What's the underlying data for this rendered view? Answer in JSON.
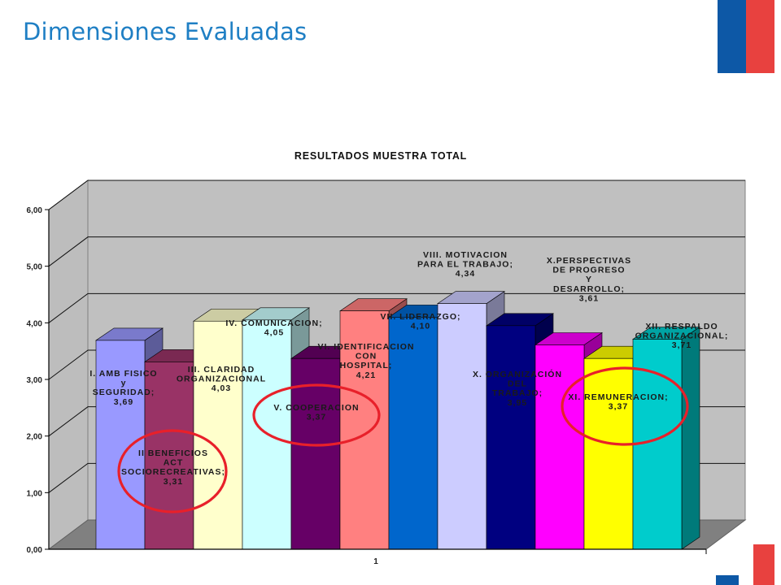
{
  "slide": {
    "title": "Dimensiones Evaluadas"
  },
  "brand_colors": {
    "blue": "#0d58a6",
    "red": "#e8413f",
    "title": "#1f7fc4"
  },
  "chart_data": {
    "type": "bar",
    "style": "3d-columns",
    "title": "RESULTADOS MUESTRA TOTAL",
    "xlabel": "",
    "ylabel": "",
    "x_tick": "1",
    "ylim": [
      0,
      6
    ],
    "yticks": [
      "0,00",
      "1,00",
      "2,00",
      "3,00",
      "4,00",
      "5,00",
      "6,00"
    ],
    "grid": true,
    "series": [
      {
        "name": "I. AMB FISICO y SEGURIDAD",
        "value": 3.69,
        "color": "#9999ff",
        "label_lines": [
          "I. AMB FISICO",
          "y",
          "SEGURIDAD;",
          "3,69"
        ]
      },
      {
        "name": "II BENEFICIOS ACT SOCIORECREATIVAS",
        "value": 3.31,
        "color": "#993366",
        "label_lines": [
          "II BENEFICIOS",
          "ACT",
          "SOCIORECREATIVAS;",
          "3,31"
        ]
      },
      {
        "name": "III. CLARIDAD ORGANIZACIONAL",
        "value": 4.03,
        "color": "#ffffcc",
        "label_lines": [
          "III. CLARIDAD",
          "ORGANIZACIONAL",
          "4,03"
        ]
      },
      {
        "name": "IV. COMUNICACION",
        "value": 4.05,
        "color": "#ccffff",
        "label_lines": [
          "IV. COMUNICACION;",
          "4,05"
        ]
      },
      {
        "name": "V. COOPERACION",
        "value": 3.37,
        "color": "#660066",
        "label_lines": [
          "V. COOPERACION",
          "3,37"
        ]
      },
      {
        "name": "VI. IDENTIFICACION CON HOSPITAL",
        "value": 4.21,
        "color": "#ff8080",
        "label_lines": [
          "VI. IDENTIFICACION",
          "CON",
          "HOSPITAL;",
          "4,21"
        ]
      },
      {
        "name": "VII. LIDERAZGO",
        "value": 4.1,
        "color": "#0066cc",
        "label_lines": [
          "VII. LIDERAZGO;",
          "4,10"
        ]
      },
      {
        "name": "VIII. MOTIVACION PARA EL TRABAJO",
        "value": 4.34,
        "color": "#ccccff",
        "label_lines": [
          "VIII. MOTIVACION",
          "PARA EL TRABAJO;",
          "4,34"
        ]
      },
      {
        "name": "X. ORGANIZACIÓN DEL TRABAJO",
        "value": 3.95,
        "color": "#000080",
        "label_lines": [
          "X. ORGANIZACIÓN",
          "DEL",
          "TRABAJO;",
          "3,95"
        ]
      },
      {
        "name": "X.PERSPECTIVAS DE PROGRESO Y DESARROLLO",
        "value": 3.61,
        "color": "#ff00ff",
        "label_lines": [
          "X.PERSPECTIVAS",
          "DE PROGRESO",
          "Y",
          "DESARROLLO;",
          "3,61"
        ]
      },
      {
        "name": "XI. REMUNERACION",
        "value": 3.37,
        "color": "#ffff00",
        "label_lines": [
          "XI. REMUNERACION;",
          "3,37"
        ]
      },
      {
        "name": "XII. RESPALDO ORGANIZACIONAL",
        "value": 3.71,
        "color": "#00cccc",
        "label_lines": [
          "XII. RESPALDO",
          "ORGANIZACIONAL;",
          "3,71"
        ]
      }
    ],
    "highlighted": [
      "II BENEFICIOS ACT SOCIORECREATIVAS",
      "V. COOPERACION",
      "XI. REMUNERACION"
    ]
  }
}
